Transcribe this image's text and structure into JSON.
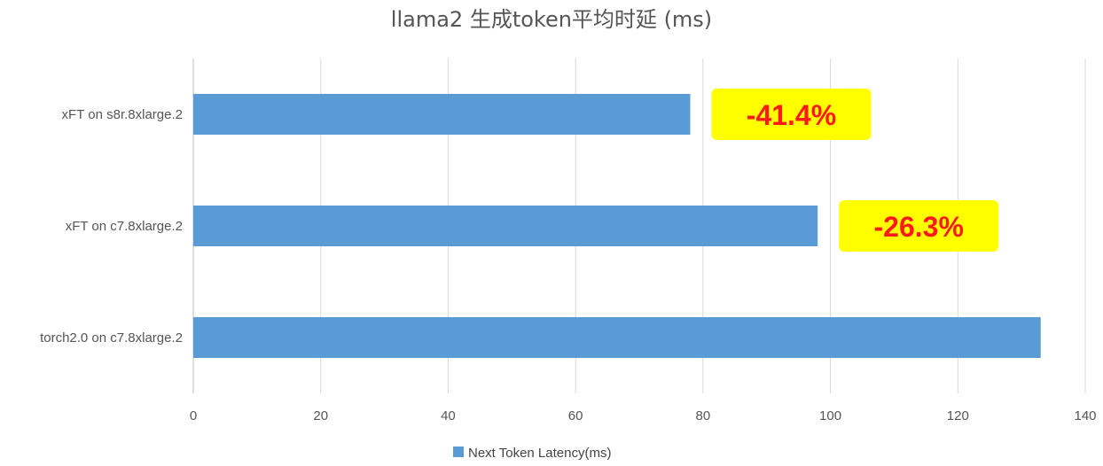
{
  "chart_data": {
    "type": "bar",
    "orientation": "horizontal",
    "title": "llama2 生成token平均时延 (ms)",
    "categories": [
      "xFT on s8r.8xlarge.2",
      "xFT on c7.8xlarge.2",
      "torch2.0 on c7.8xlarge.2"
    ],
    "series": [
      {
        "name": "Next Token Latency(ms)",
        "values": [
          78,
          98,
          133
        ],
        "color": "#5b9bd5"
      }
    ],
    "xlim": [
      0,
      140
    ],
    "xticks": [
      0,
      20,
      40,
      60,
      80,
      100,
      120,
      140
    ],
    "grid": true,
    "legend_position": "bottom",
    "annotations": [
      {
        "category": "xFT on s8r.8xlarge.2",
        "text": "-41.4%",
        "background": "#ffff00",
        "color": "#ff1a1a"
      },
      {
        "category": "xFT on c7.8xlarge.2",
        "text": "-26.3%",
        "background": "#ffff00",
        "color": "#ff1a1a"
      }
    ]
  }
}
